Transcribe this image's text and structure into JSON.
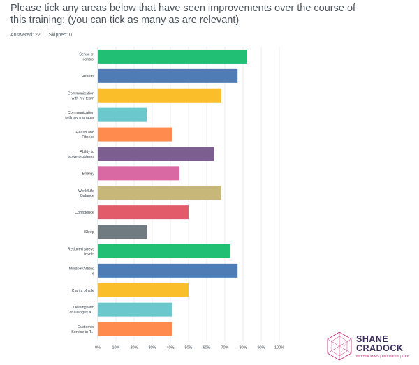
{
  "question": {
    "text": "Please tick any areas below that have seen improvements over the course of this training: (you can tick as many as are relevant)",
    "answered": "Answered: 22",
    "skipped": "Skipped: 0"
  },
  "chart_data": {
    "type": "bar",
    "orientation": "horizontal",
    "categories": [
      [
        "Sense of",
        "control"
      ],
      [
        "Results"
      ],
      [
        "Communication",
        "with my team"
      ],
      [
        "Communication",
        "with my manager"
      ],
      [
        "Health and",
        "Fitness"
      ],
      [
        "Ability to",
        "solve problems"
      ],
      [
        "Energy"
      ],
      [
        "Work/Life",
        "Balance"
      ],
      [
        "Confidence"
      ],
      [
        "Sleep"
      ],
      [
        "Reduced stress",
        "levels"
      ],
      [
        "Mindset/Attitud",
        "e"
      ],
      [
        "Clarity of role"
      ],
      [
        "Dealing with",
        "challenges a..."
      ],
      [
        "Customer",
        "Service in T..."
      ]
    ],
    "values": [
      82,
      77,
      68,
      27,
      41,
      64,
      45,
      68,
      50,
      27,
      73,
      77,
      50,
      41,
      41
    ],
    "colors": [
      "#21bf73",
      "#507cb6",
      "#f9be29",
      "#6bc8cd",
      "#ff8b4f",
      "#7d5e90",
      "#d869a3",
      "#c7b879",
      "#e25b6a",
      "#707a81",
      "#21bf73",
      "#507cb6",
      "#f9be29",
      "#6bc8cd",
      "#ff8b4f"
    ],
    "xticks": [
      "0%",
      "10%",
      "20%",
      "30%",
      "40%",
      "50%",
      "60%",
      "70%",
      "80%",
      "90%",
      "100%"
    ],
    "xlim": [
      0,
      100
    ],
    "grid": true
  },
  "logo": {
    "name_line1": "SHANE",
    "name_line2": "CRADOCK",
    "tagline": "BETTER MIND | BUSINESS | LIFE"
  }
}
